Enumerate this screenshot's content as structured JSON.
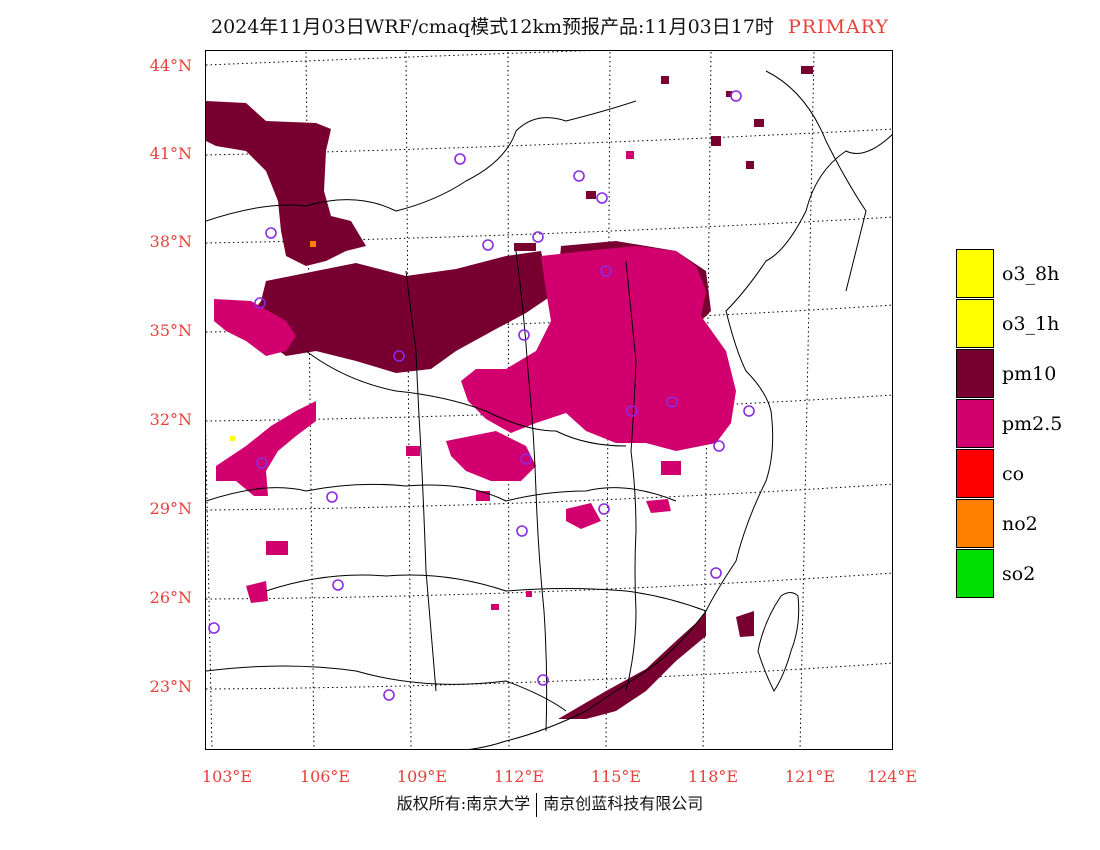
{
  "title": {
    "main": "2024年11月03日WRF/cmaq模式12km预报产品:11月03日17时",
    "tag": "PRIMARY"
  },
  "axes": {
    "lat_labels": [
      "44°N",
      "41°N",
      "38°N",
      "35°N",
      "32°N",
      "29°N",
      "26°N",
      "23°N"
    ],
    "lon_labels": [
      "103°E",
      "106°E",
      "109°E",
      "112°E",
      "115°E",
      "118°E",
      "121°E",
      "124°E"
    ]
  },
  "legend": {
    "items": [
      {
        "label": "o3_8h",
        "color": "#ffff00"
      },
      {
        "label": "o3_1h",
        "color": "#ffff00"
      },
      {
        "label": "pm10",
        "color": "#780030"
      },
      {
        "label": "pm2.5",
        "color": "#d2006e"
      },
      {
        "label": "co",
        "color": "#ff0000"
      },
      {
        "label": "no2",
        "color": "#ff8000"
      },
      {
        "label": "so2",
        "color": "#00e000"
      }
    ]
  },
  "footer": {
    "left": "版权所有:南京大学",
    "right": "南京创蓝科技有限公司"
  },
  "colors": {
    "pm10": "#780030",
    "pm25": "#d2006e",
    "station": "#8a2be2",
    "axis_label": "#e8403a"
  }
}
